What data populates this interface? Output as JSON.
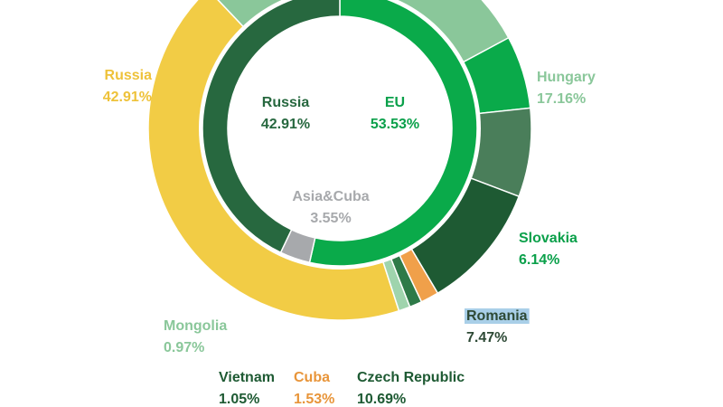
{
  "chart_data": {
    "type": "pie",
    "style": "nested-donut",
    "center_rotation_deg": 0,
    "inner_ring": [
      {
        "name": "EU",
        "value": 53.53,
        "label": "EU",
        "value_label": "53.53%",
        "color": "#0aaa4a",
        "text_color": "#0aa04a"
      },
      {
        "name": "Asia&Cuba",
        "value": 3.55,
        "label": "Asia&Cuba",
        "value_label": "3.55%",
        "color": "#a7a9ac",
        "text_color": "#a7a9ac"
      },
      {
        "name": "Russia",
        "value": 42.91,
        "label": "Russia",
        "value_label": "42.91%",
        "color": "#27683f",
        "text_color": "#27683f"
      }
    ],
    "outer_ring": [
      {
        "name": "Hungary",
        "value": 17.16,
        "label": "Hungary",
        "value_label": "17.16%",
        "color": "#8ac79a",
        "text_color": "#8ac79a"
      },
      {
        "name": "Slovakia",
        "value": 6.14,
        "label": "Slovakia",
        "value_label": "6.14%",
        "color": "#0aaa4a",
        "text_color": "#0aa04a"
      },
      {
        "name": "Romania",
        "value": 7.47,
        "label": "Romania",
        "value_label": "7.47%",
        "color": "#4a7e5a",
        "text_color": "#2e4a36",
        "highlight": "#a9cfe8"
      },
      {
        "name": "Czech Republic",
        "value": 10.69,
        "label": "Czech Republic",
        "value_label": "10.69%",
        "color": "#1e5a33",
        "text_color": "#1e5a33"
      },
      {
        "name": "Cuba",
        "value": 1.53,
        "label": "Cuba",
        "value_label": "1.53%",
        "color": "#f0a04a",
        "text_color": "#e8953a"
      },
      {
        "name": "Vietnam",
        "value": 1.05,
        "label": "Vietnam",
        "value_label": "1.05%",
        "color": "#2e7a48",
        "text_color": "#1e5a33"
      },
      {
        "name": "Mongolia",
        "value": 0.97,
        "label": "Mongolia",
        "value_label": "0.97%",
        "color": "#9fd4ad",
        "text_color": "#8ac79a"
      },
      {
        "name": "Russia",
        "value": 42.91,
        "label": "Russia",
        "value_label": "42.91%",
        "color": "#f2cc45",
        "text_color": "#eec23a"
      },
      {
        "name": "unlabeled",
        "value": 12.08,
        "color": "#8ac79a"
      }
    ]
  }
}
